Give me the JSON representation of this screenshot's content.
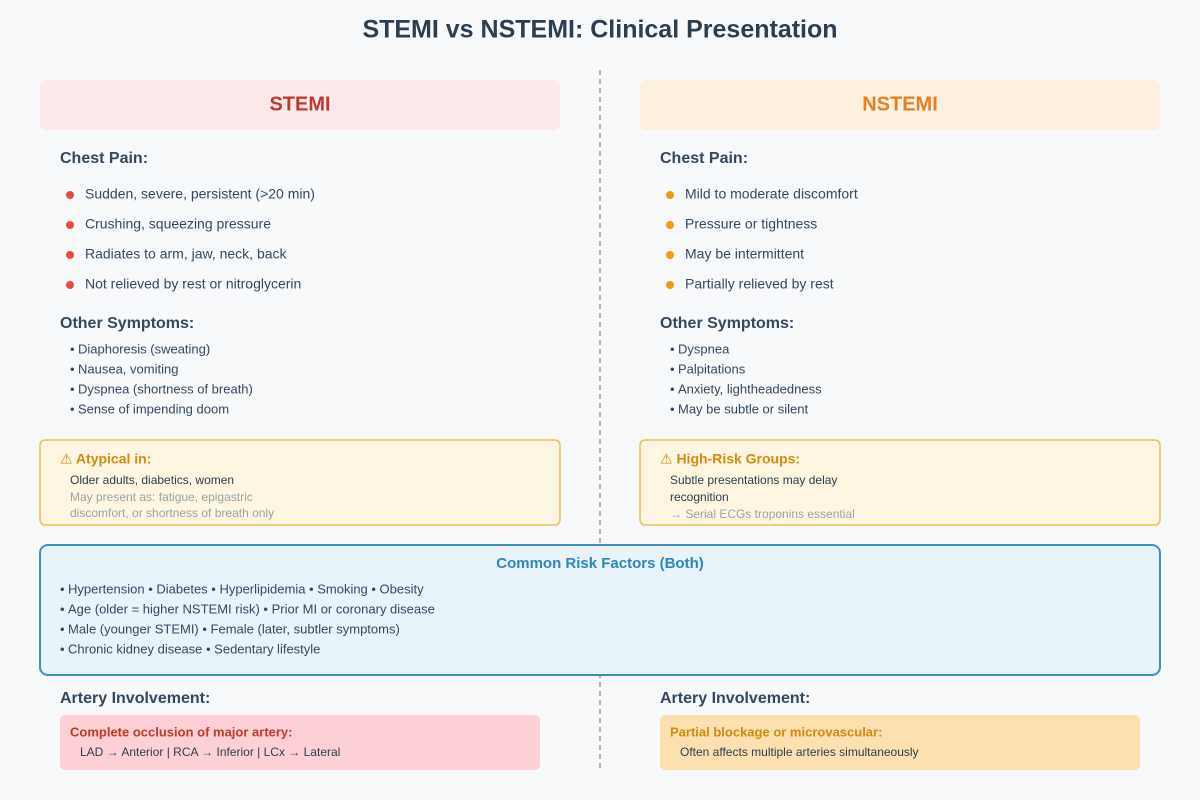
{
  "title": "STEMI vs NSTEMI: Clinical Presentation",
  "columns": [
    {
      "heading": "STEMI",
      "chest_pain_label": "Chest Pain:",
      "chest_pain": [
        "Sudden, severe, persistent (>20 min)",
        "Crushing, squeezing pressure",
        "Radiates to arm, jaw, neck, back",
        "Not relieved by rest or nitroglycerin"
      ],
      "other_label": "Other Symptoms:",
      "other": [
        "Diaphoresis (sweating)",
        "Nausea, vomiting",
        "Dyspnea (shortness of breath)",
        "Sense of impending doom"
      ],
      "note": {
        "title": "⚠ Atypical in:",
        "primary": [
          "Older adults, diabetics, women"
        ],
        "secondary": [
          "May present as: fatigue, epigastric",
          "discomfort, or shortness of breath only"
        ]
      },
      "artery_label": "Artery Involvement:",
      "artery": {
        "title": "Complete occlusion of major artery:",
        "text": "LAD → Anterior | RCA → Inferior | LCx → Lateral"
      }
    },
    {
      "heading": "NSTEMI",
      "chest_pain_label": "Chest Pain:",
      "chest_pain": [
        "Mild to moderate discomfort",
        "Pressure or tightness",
        "May be intermittent",
        "Partially relieved by rest"
      ],
      "other_label": "Other Symptoms:",
      "other": [
        "Dyspnea",
        "Palpitations",
        "Anxiety, lightheadedness",
        "May be subtle or silent"
      ],
      "note": {
        "title": "⚠ High-Risk Groups:",
        "primary": [
          "Subtle presentations may delay",
          "recognition"
        ],
        "secondary": [
          "→ Serial ECGs troponins essential"
        ]
      },
      "artery_label": "Artery Involvement:",
      "artery": {
        "title": "Partial blockage or microvascular:",
        "text": "Often affects multiple arteries simultaneously"
      }
    }
  ],
  "risk_factors": {
    "title": "Common Risk Factors (Both)",
    "lines": [
      "Hypertension • Diabetes • Hyperlipidemia • Smoking • Obesity",
      "Age (older = higher NSTEMI risk) • Prior MI or coronary disease",
      "Male (younger STEMI) • Female (later, subtler symptoms)",
      "Chronic kidney disease • Sedentary lifestyle"
    ]
  }
}
